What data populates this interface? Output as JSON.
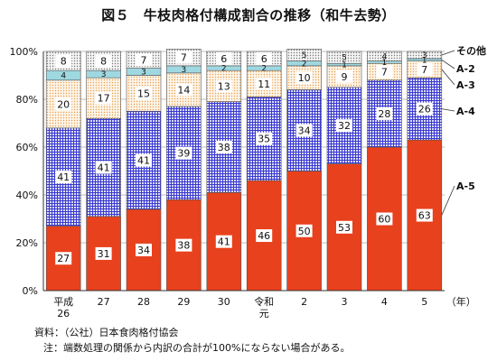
{
  "chart_data": {
    "type": "bar",
    "stacked": true,
    "horizontal": false,
    "title": "図５　牛枝肉格付構成割合の推移（和牛去勢）",
    "categories": [
      [
        "平成",
        "26"
      ],
      [
        "27"
      ],
      [
        "28"
      ],
      [
        "29"
      ],
      [
        "30"
      ],
      [
        "令和",
        "元"
      ],
      [
        "2"
      ],
      [
        "3"
      ],
      [
        "4"
      ],
      [
        "5"
      ]
    ],
    "x_unit_label": "（年）",
    "y_ticks": [
      "0%",
      "20%",
      "40%",
      "60%",
      "80%",
      "100%"
    ],
    "ylim": [
      0,
      100
    ],
    "grid": true,
    "series": [
      {
        "name": "A-5",
        "color": "#e8411d",
        "pattern": "solid",
        "values": [
          27,
          31,
          34,
          38,
          41,
          46,
          50,
          53,
          60,
          63
        ]
      },
      {
        "name": "A-4",
        "color": "#3a3ad0",
        "pattern": "crosshatch",
        "values": [
          41,
          41,
          41,
          39,
          38,
          35,
          34,
          32,
          28,
          26
        ]
      },
      {
        "name": "A-3",
        "color": "#e8a050",
        "pattern": "dots",
        "values": [
          20,
          17,
          15,
          14,
          13,
          11,
          10,
          9,
          7,
          7
        ]
      },
      {
        "name": "A-2",
        "color": "#9fd8e0",
        "pattern": "solid",
        "values": [
          4,
          3,
          3,
          3,
          2,
          2,
          2,
          1,
          1,
          1
        ]
      },
      {
        "name": "その他",
        "color": "#8b8b8b",
        "pattern": "dots",
        "values": [
          8,
          8,
          7,
          7,
          6,
          6,
          5,
          5,
          4,
          3
        ]
      }
    ],
    "legend_placement": "right (labels beside last bar)"
  },
  "notes": {
    "source": "資料：（公社）日本食肉格付協会",
    "note": "注：端数処理の関係から内訳の合計が100%にならない場合がある。"
  }
}
